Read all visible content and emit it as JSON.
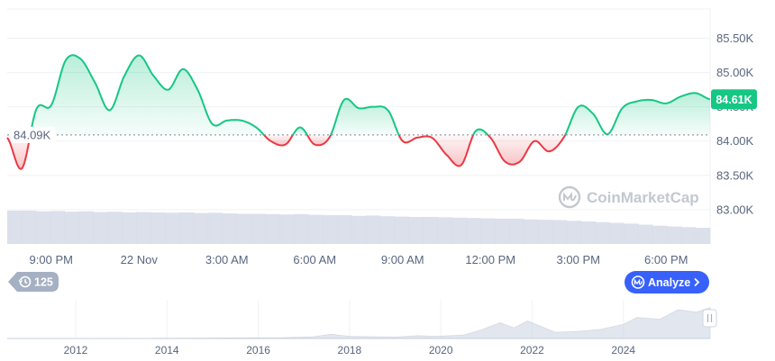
{
  "chart_data": {
    "type": "area",
    "y_ticks": [
      "85.50K",
      "85.00K",
      "84.50K",
      "84.00K",
      "83.50K",
      "83.00K"
    ],
    "y_tick_values": [
      85.5,
      85.0,
      84.5,
      84.0,
      83.5,
      83.0
    ],
    "ylim": [
      82.5,
      85.9
    ],
    "x_ticks": [
      "9:00 PM",
      "22 Nov",
      "3:00 AM",
      "6:00 AM",
      "9:00 AM",
      "12:00 PM",
      "3:00 PM",
      "6:00 PM"
    ],
    "x_tick_hours": [
      2.0,
      5.0,
      8.0,
      11.0,
      14.0,
      17.0,
      20.0,
      23.0
    ],
    "xlim_hours": [
      0.5,
      24.5
    ],
    "baseline": 84.09,
    "baseline_label": "84.09K",
    "current": 84.61,
    "current_label": "84.61K",
    "unit": "thousands",
    "grid": true,
    "x_hours": [
      0.5,
      1.0,
      1.5,
      2.0,
      2.5,
      3.0,
      3.5,
      4.0,
      4.5,
      5.0,
      5.5,
      6.0,
      6.5,
      7.0,
      7.5,
      8.0,
      8.5,
      9.0,
      9.5,
      10.0,
      10.5,
      11.0,
      11.5,
      12.0,
      12.5,
      13.0,
      13.5,
      14.0,
      14.5,
      15.0,
      15.5,
      16.0,
      16.5,
      17.0,
      17.5,
      18.0,
      18.5,
      19.0,
      19.5,
      20.0,
      20.5,
      21.0,
      21.5,
      22.0,
      22.5,
      23.0,
      23.5,
      24.0,
      24.5
    ],
    "prices": [
      84.05,
      83.6,
      84.47,
      84.52,
      85.18,
      85.2,
      84.85,
      84.45,
      84.95,
      85.25,
      84.95,
      84.75,
      85.05,
      84.75,
      84.25,
      84.3,
      84.3,
      84.2,
      84.0,
      83.95,
      84.2,
      83.95,
      84.05,
      84.6,
      84.48,
      84.5,
      84.45,
      84.0,
      84.05,
      84.05,
      83.8,
      83.65,
      84.15,
      84.05,
      83.7,
      83.7,
      84.0,
      83.85,
      84.05,
      84.5,
      84.4,
      84.1,
      84.48,
      84.58,
      84.6,
      84.55,
      84.65,
      84.7,
      84.61
    ],
    "volume": [
      0.95,
      0.95,
      0.93,
      0.94,
      0.92,
      0.93,
      0.91,
      0.92,
      0.9,
      0.91,
      0.9,
      0.89,
      0.9,
      0.88,
      0.89,
      0.87,
      0.86,
      0.86,
      0.85,
      0.84,
      0.85,
      0.83,
      0.82,
      0.82,
      0.8,
      0.81,
      0.79,
      0.78,
      0.77,
      0.77,
      0.76,
      0.75,
      0.74,
      0.73,
      0.72,
      0.72,
      0.7,
      0.69,
      0.68,
      0.66,
      0.64,
      0.62,
      0.6,
      0.58,
      0.55,
      0.52,
      0.5,
      0.48,
      0.46
    ],
    "colors": {
      "up": "#16c784",
      "down": "#ea3943",
      "grid": "#eff2f5",
      "volume": "#cfd6e4",
      "navigator": "#cfd6e4",
      "accent": "#3861fb"
    }
  },
  "navigator": {
    "years": [
      "2012",
      "2014",
      "2016",
      "2018",
      "2020",
      "2022",
      "2024"
    ],
    "year_values": [
      2012,
      2014,
      2016,
      2018,
      2020,
      2022,
      2024
    ],
    "year_range": [
      2010.5,
      2025.9
    ],
    "series_years": [
      2010.5,
      2013,
      2016.5,
      2017.2,
      2017.6,
      2018.0,
      2019.0,
      2019.5,
      2019.9,
      2020.5,
      2020.9,
      2021.3,
      2021.6,
      2021.9,
      2022.5,
      2023.0,
      2023.5,
      2024.0,
      2024.3,
      2024.8,
      2025.2,
      2025.6,
      2025.9
    ],
    "series_values": [
      0.0,
      0.0,
      0.02,
      0.05,
      0.12,
      0.06,
      0.04,
      0.08,
      0.06,
      0.1,
      0.25,
      0.45,
      0.3,
      0.5,
      0.18,
      0.2,
      0.26,
      0.4,
      0.6,
      0.55,
      0.82,
      0.75,
      0.88
    ]
  },
  "history_badge": {
    "count": "125",
    "icon": "history-icon"
  },
  "analyze_button": {
    "label": "Analyze",
    "icon": "coinmarketcap-logo-icon",
    "chevron": "chevron-right-icon"
  },
  "watermark": {
    "text": "CoinMarketCap",
    "icon": "coinmarketcap-logo-icon"
  }
}
